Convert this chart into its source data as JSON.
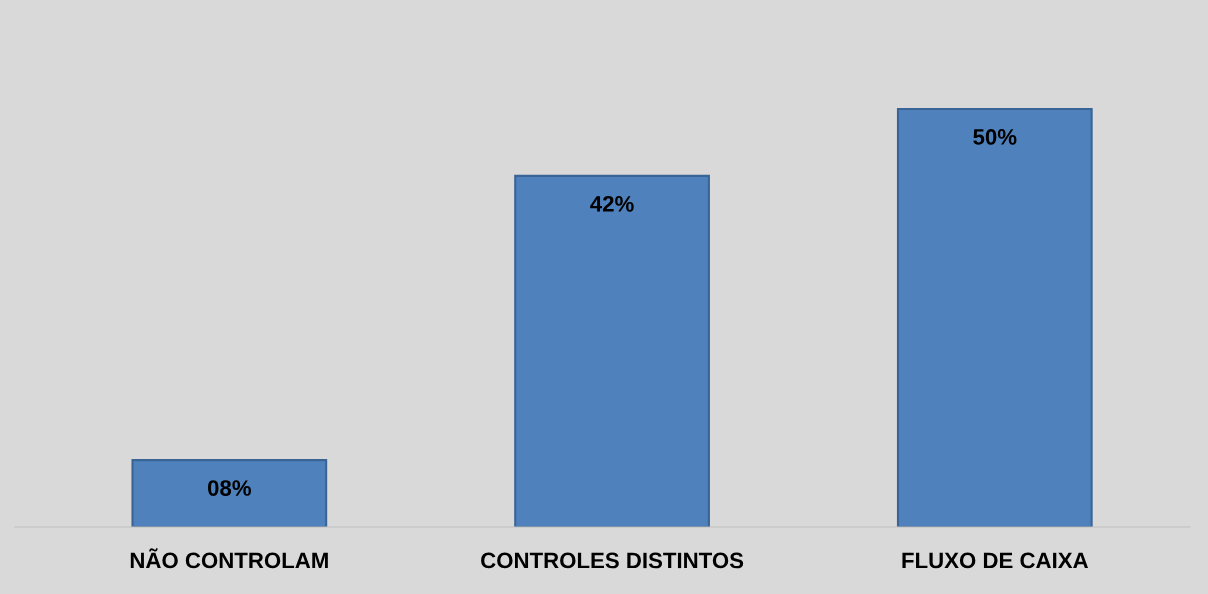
{
  "chart_data": {
    "type": "bar",
    "categories": [
      "NÃO CONTROLAM",
      "CONTROLES DISTINTOS",
      "FLUXO DE CAIXA"
    ],
    "values": [
      8,
      42,
      50
    ],
    "value_labels": [
      "08%",
      "42%",
      "50%"
    ],
    "color": "#4f81bd",
    "grid": false,
    "legend": false
  }
}
